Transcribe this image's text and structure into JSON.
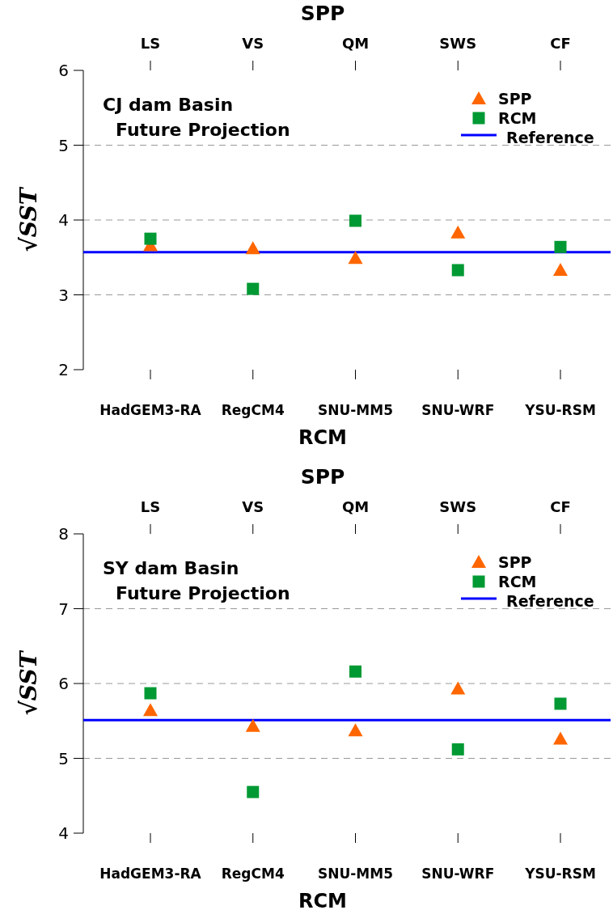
{
  "chart_data": [
    {
      "type": "scatter",
      "x2label": "SPP",
      "xlabel": "RCM",
      "ylabel": "√SST",
      "annotations": [
        "CJ dam Basin",
        "Future Projection",
        {
          "text": "LS",
          "x": "HadGEM3-RA"
        },
        {
          "text": "VS",
          "x": "RegCM4"
        },
        {
          "text": "QM",
          "x": "SNU-MM5"
        },
        {
          "text": "SWS",
          "x": "SNU-WRF"
        },
        {
          "text": "CF",
          "x": "YSU-RSM"
        }
      ],
      "categories": [
        "HadGEM3-RA",
        "RegCM4",
        "SNU-MM5",
        "SNU-WRF",
        "YSU-RSM"
      ],
      "ylim": [
        2,
        6
      ],
      "yticks": [
        2,
        3,
        4,
        5,
        6
      ],
      "grid": "y",
      "legend": "top right",
      "series": [
        {
          "name": "SPP",
          "color": "#ff6600",
          "marker": "triangle",
          "values": [
            3.66,
            3.62,
            3.49,
            3.83,
            3.33
          ]
        },
        {
          "name": "RCM",
          "color": "#009933",
          "marker": "square",
          "values": [
            3.75,
            3.08,
            3.99,
            3.33,
            3.64
          ]
        }
      ],
      "ref_lines": [
        {
          "axis": "y",
          "value": 3.57,
          "label": "Reference",
          "color": "#0000ff"
        }
      ]
    },
    {
      "type": "scatter",
      "x2label": "SPP",
      "xlabel": "RCM",
      "ylabel": "√SST",
      "annotations": [
        "SY dam Basin",
        "Future Projection",
        {
          "text": "LS",
          "x": "HadGEM3-RA"
        },
        {
          "text": "VS",
          "x": "RegCM4"
        },
        {
          "text": "QM",
          "x": "SNU-MM5"
        },
        {
          "text": "SWS",
          "x": "SNU-WRF"
        },
        {
          "text": "CF",
          "x": "YSU-RSM"
        }
      ],
      "categories": [
        "HadGEM3-RA",
        "RegCM4",
        "SNU-MM5",
        "SNU-WRF",
        "YSU-RSM"
      ],
      "ylim": [
        4,
        8
      ],
      "yticks": [
        4,
        5,
        6,
        7,
        8
      ],
      "grid": "y",
      "legend": "top right",
      "series": [
        {
          "name": "SPP",
          "color": "#ff6600",
          "marker": "triangle",
          "values": [
            5.64,
            5.43,
            5.37,
            5.93,
            5.26
          ]
        },
        {
          "name": "RCM",
          "color": "#009933",
          "marker": "square",
          "values": [
            5.87,
            4.55,
            6.16,
            5.12,
            5.73
          ]
        }
      ],
      "ref_lines": [
        {
          "axis": "y",
          "value": 5.51,
          "label": "Reference",
          "color": "#0000ff"
        }
      ]
    }
  ]
}
